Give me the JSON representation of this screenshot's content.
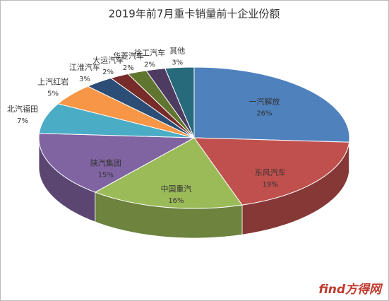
{
  "chart_data": {
    "type": "pie3d",
    "title": "2019年前7月重卡销量前十企业份额",
    "categories": [
      "一汽解放",
      "东风汽车",
      "中国重汽",
      "陕汽集团",
      "北汽福田",
      "上汽红岩",
      "江淮汽车",
      "大运汽车",
      "华菱汽车",
      "徐工汽车",
      "其他"
    ],
    "values": [
      26,
      19,
      16,
      15,
      7,
      5,
      3,
      2,
      2,
      2,
      3
    ],
    "value_labels": [
      "26%",
      "19%",
      "16%",
      "15%",
      "7%",
      "5%",
      "3%",
      "2%",
      "2%",
      "2%",
      "3%"
    ],
    "colors": [
      "#4f81bd",
      "#c0504d",
      "#9bbb59",
      "#8064a2",
      "#4bacc6",
      "#f79646",
      "#2c4d75",
      "#772c2a",
      "#5f7530",
      "#4d3b62",
      "#276a7c"
    ],
    "watermark": "find方得网"
  }
}
